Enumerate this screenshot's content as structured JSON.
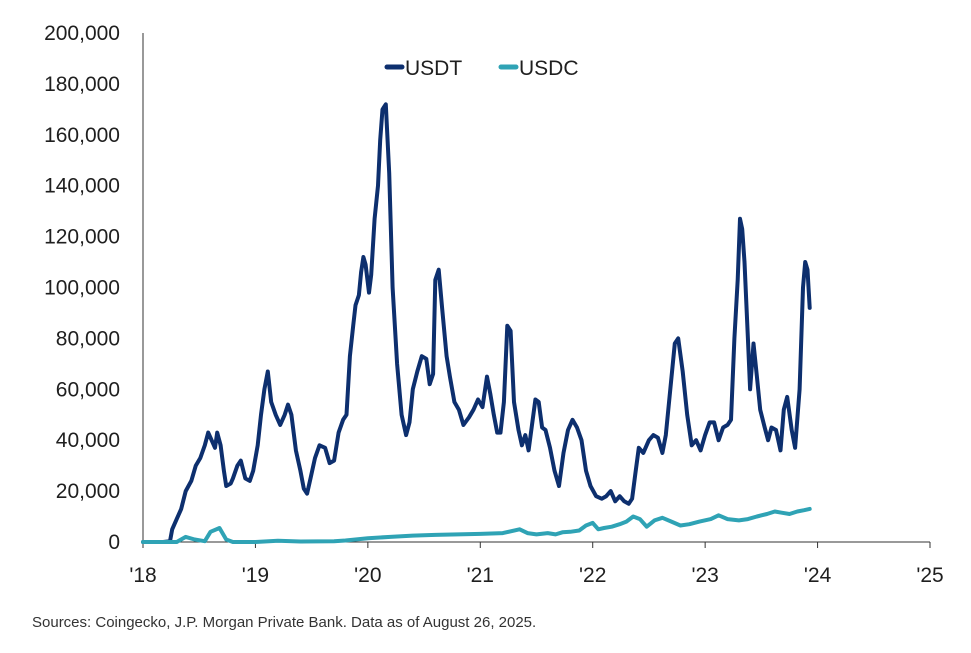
{
  "chart_data": {
    "type": "line",
    "title": "",
    "xlabel": "",
    "ylabel": "",
    "x_tick_labels": [
      "'18",
      "'19",
      "'20",
      "'21",
      "'22",
      "'23",
      "'24",
      "'25"
    ],
    "y_tick_labels": [
      "0",
      "20,000",
      "40,000",
      "60,000",
      "80,000",
      "100,000",
      "120,000",
      "140,000",
      "160,000",
      "180,000",
      "200,000"
    ],
    "xlim": [
      2018.0,
      2025.0
    ],
    "ylim": [
      0,
      200000
    ],
    "grid": false,
    "legend_position": "top-center",
    "series": [
      {
        "name": "USDT",
        "color": "#0d2f6e",
        "points": [
          [
            2018.0,
            0
          ],
          [
            2018.18,
            0
          ],
          [
            2018.24,
            300
          ],
          [
            2018.26,
            5000
          ],
          [
            2018.3,
            9000
          ],
          [
            2018.34,
            13000
          ],
          [
            2018.38,
            20000
          ],
          [
            2018.43,
            24000
          ],
          [
            2018.47,
            30000
          ],
          [
            2018.51,
            33000
          ],
          [
            2018.55,
            38000
          ],
          [
            2018.58,
            43000
          ],
          [
            2018.61,
            40000
          ],
          [
            2018.64,
            37000
          ],
          [
            2018.66,
            43000
          ],
          [
            2018.69,
            38000
          ],
          [
            2018.72,
            28000
          ],
          [
            2018.74,
            22000
          ],
          [
            2018.78,
            23000
          ],
          [
            2018.8,
            25000
          ],
          [
            2018.84,
            30000
          ],
          [
            2018.87,
            32000
          ],
          [
            2018.91,
            25000
          ],
          [
            2018.95,
            24000
          ],
          [
            2018.98,
            28000
          ],
          [
            2019.02,
            38000
          ],
          [
            2019.05,
            50000
          ],
          [
            2019.08,
            60000
          ],
          [
            2019.11,
            67000
          ],
          [
            2019.14,
            55000
          ],
          [
            2019.18,
            50000
          ],
          [
            2019.22,
            46000
          ],
          [
            2019.26,
            50000
          ],
          [
            2019.29,
            54000
          ],
          [
            2019.32,
            50000
          ],
          [
            2019.36,
            36000
          ],
          [
            2019.4,
            28000
          ],
          [
            2019.43,
            21000
          ],
          [
            2019.46,
            19000
          ],
          [
            2019.49,
            25000
          ],
          [
            2019.53,
            33000
          ],
          [
            2019.57,
            38000
          ],
          [
            2019.62,
            37000
          ],
          [
            2019.66,
            31000
          ],
          [
            2019.7,
            32000
          ],
          [
            2019.74,
            43000
          ],
          [
            2019.78,
            48000
          ],
          [
            2019.81,
            50000
          ],
          [
            2019.84,
            73000
          ],
          [
            2019.87,
            85000
          ],
          [
            2019.89,
            93000
          ],
          [
            2019.92,
            97000
          ],
          [
            2019.94,
            106000
          ],
          [
            2019.96,
            112000
          ],
          [
            2019.98,
            109000
          ],
          [
            2020.01,
            98000
          ],
          [
            2020.03,
            105000
          ],
          [
            2020.06,
            127000
          ],
          [
            2020.09,
            140000
          ],
          [
            2020.11,
            158000
          ],
          [
            2020.13,
            170000
          ],
          [
            2020.16,
            172000
          ],
          [
            2020.19,
            145000
          ],
          [
            2020.22,
            100000
          ],
          [
            2020.26,
            70000
          ],
          [
            2020.3,
            50000
          ],
          [
            2020.34,
            42000
          ],
          [
            2020.37,
            47000
          ],
          [
            2020.4,
            60000
          ],
          [
            2020.44,
            67000
          ],
          [
            2020.48,
            73000
          ],
          [
            2020.52,
            72000
          ],
          [
            2020.55,
            62000
          ],
          [
            2020.58,
            66000
          ],
          [
            2020.6,
            103000
          ],
          [
            2020.63,
            107000
          ],
          [
            2020.66,
            92000
          ],
          [
            2020.7,
            73000
          ],
          [
            2020.73,
            65000
          ],
          [
            2020.77,
            55000
          ],
          [
            2020.81,
            52000
          ],
          [
            2020.85,
            46000
          ],
          [
            2020.9,
            49000
          ],
          [
            2020.94,
            52000
          ],
          [
            2020.98,
            56000
          ],
          [
            2021.02,
            53000
          ],
          [
            2021.06,
            65000
          ],
          [
            2021.09,
            58000
          ],
          [
            2021.12,
            50000
          ],
          [
            2021.15,
            43000
          ],
          [
            2021.18,
            43000
          ],
          [
            2021.21,
            55000
          ],
          [
            2021.24,
            85000
          ],
          [
            2021.27,
            83000
          ],
          [
            2021.3,
            55000
          ],
          [
            2021.34,
            44000
          ],
          [
            2021.37,
            38000
          ],
          [
            2021.4,
            42000
          ],
          [
            2021.43,
            36000
          ],
          [
            2021.46,
            46000
          ],
          [
            2021.49,
            56000
          ],
          [
            2021.52,
            55000
          ],
          [
            2021.55,
            45000
          ],
          [
            2021.58,
            44000
          ],
          [
            2021.62,
            37000
          ],
          [
            2021.66,
            28000
          ],
          [
            2021.7,
            22000
          ],
          [
            2021.74,
            35000
          ],
          [
            2021.78,
            44000
          ],
          [
            2021.82,
            48000
          ],
          [
            2021.86,
            45000
          ],
          [
            2021.9,
            40000
          ],
          [
            2021.94,
            28000
          ],
          [
            2021.98,
            22000
          ],
          [
            2022.03,
            18000
          ],
          [
            2022.08,
            17000
          ],
          [
            2022.12,
            18000
          ],
          [
            2022.16,
            20000
          ],
          [
            2022.2,
            16000
          ],
          [
            2022.24,
            18000
          ],
          [
            2022.28,
            16000
          ],
          [
            2022.32,
            15000
          ],
          [
            2022.35,
            17000
          ],
          [
            2022.38,
            27000
          ],
          [
            2022.41,
            37000
          ],
          [
            2022.45,
            35000
          ],
          [
            2022.5,
            40000
          ],
          [
            2022.54,
            42000
          ],
          [
            2022.58,
            41000
          ],
          [
            2022.62,
            35000
          ],
          [
            2022.65,
            42000
          ],
          [
            2022.69,
            60000
          ],
          [
            2022.73,
            78000
          ],
          [
            2022.76,
            80000
          ],
          [
            2022.8,
            67000
          ],
          [
            2022.84,
            50000
          ],
          [
            2022.88,
            38000
          ],
          [
            2022.92,
            40000
          ],
          [
            2022.96,
            36000
          ],
          [
            2023.0,
            42000
          ],
          [
            2023.04,
            47000
          ],
          [
            2023.08,
            47000
          ],
          [
            2023.12,
            40000
          ],
          [
            2023.16,
            45000
          ],
          [
            2023.2,
            46000
          ],
          [
            2023.23,
            48000
          ],
          [
            2023.26,
            80000
          ],
          [
            2023.29,
            103000
          ],
          [
            2023.31,
            127000
          ],
          [
            2023.33,
            123000
          ],
          [
            2023.35,
            110000
          ],
          [
            2023.38,
            80000
          ],
          [
            2023.4,
            60000
          ],
          [
            2023.43,
            78000
          ],
          [
            2023.46,
            65000
          ],
          [
            2023.49,
            52000
          ],
          [
            2023.53,
            45000
          ],
          [
            2023.56,
            40000
          ],
          [
            2023.59,
            45000
          ],
          [
            2023.63,
            44000
          ],
          [
            2023.67,
            36000
          ],
          [
            2023.7,
            52000
          ],
          [
            2023.73,
            57000
          ],
          [
            2023.77,
            44000
          ],
          [
            2023.8,
            37000
          ],
          [
            2023.84,
            60000
          ],
          [
            2023.87,
            100000
          ],
          [
            2023.89,
            110000
          ],
          [
            2023.91,
            107000
          ],
          [
            2023.93,
            92000
          ]
        ]
      },
      {
        "name": "USDC",
        "color": "#2fa3b5",
        "points": [
          [
            2018.0,
            0
          ],
          [
            2018.3,
            0
          ],
          [
            2018.38,
            2000
          ],
          [
            2018.46,
            1000
          ],
          [
            2018.55,
            300
          ],
          [
            2018.6,
            4000
          ],
          [
            2018.68,
            5500
          ],
          [
            2018.74,
            1000
          ],
          [
            2018.8,
            0
          ],
          [
            2019.0,
            0
          ],
          [
            2019.2,
            500
          ],
          [
            2019.4,
            200
          ],
          [
            2019.7,
            300
          ],
          [
            2019.8,
            600
          ],
          [
            2020.0,
            1500
          ],
          [
            2020.2,
            2000
          ],
          [
            2020.4,
            2500
          ],
          [
            2020.6,
            2800
          ],
          [
            2020.8,
            3000
          ],
          [
            2021.0,
            3200
          ],
          [
            2021.2,
            3500
          ],
          [
            2021.35,
            5000
          ],
          [
            2021.42,
            3500
          ],
          [
            2021.5,
            3000
          ],
          [
            2021.6,
            3500
          ],
          [
            2021.67,
            3000
          ],
          [
            2021.73,
            3800
          ],
          [
            2021.8,
            4000
          ],
          [
            2021.88,
            4500
          ],
          [
            2021.94,
            6500
          ],
          [
            2022.0,
            7500
          ],
          [
            2022.05,
            5000
          ],
          [
            2022.1,
            5500
          ],
          [
            2022.17,
            6000
          ],
          [
            2022.24,
            7000
          ],
          [
            2022.3,
            8000
          ],
          [
            2022.36,
            10000
          ],
          [
            2022.42,
            9000
          ],
          [
            2022.48,
            6000
          ],
          [
            2022.55,
            8500
          ],
          [
            2022.62,
            9500
          ],
          [
            2022.7,
            8000
          ],
          [
            2022.78,
            6500
          ],
          [
            2022.86,
            7000
          ],
          [
            2022.95,
            8000
          ],
          [
            2023.05,
            9000
          ],
          [
            2023.12,
            10500
          ],
          [
            2023.2,
            9000
          ],
          [
            2023.3,
            8500
          ],
          [
            2023.38,
            9000
          ],
          [
            2023.46,
            10000
          ],
          [
            2023.55,
            11000
          ],
          [
            2023.62,
            12000
          ],
          [
            2023.68,
            11500
          ],
          [
            2023.75,
            11000
          ],
          [
            2023.82,
            12000
          ],
          [
            2023.88,
            12500
          ],
          [
            2023.93,
            13000
          ]
        ]
      }
    ]
  },
  "source_note": "Sources: Coingecko, J.P. Morgan Private Bank. Data as of August 26, 2025."
}
